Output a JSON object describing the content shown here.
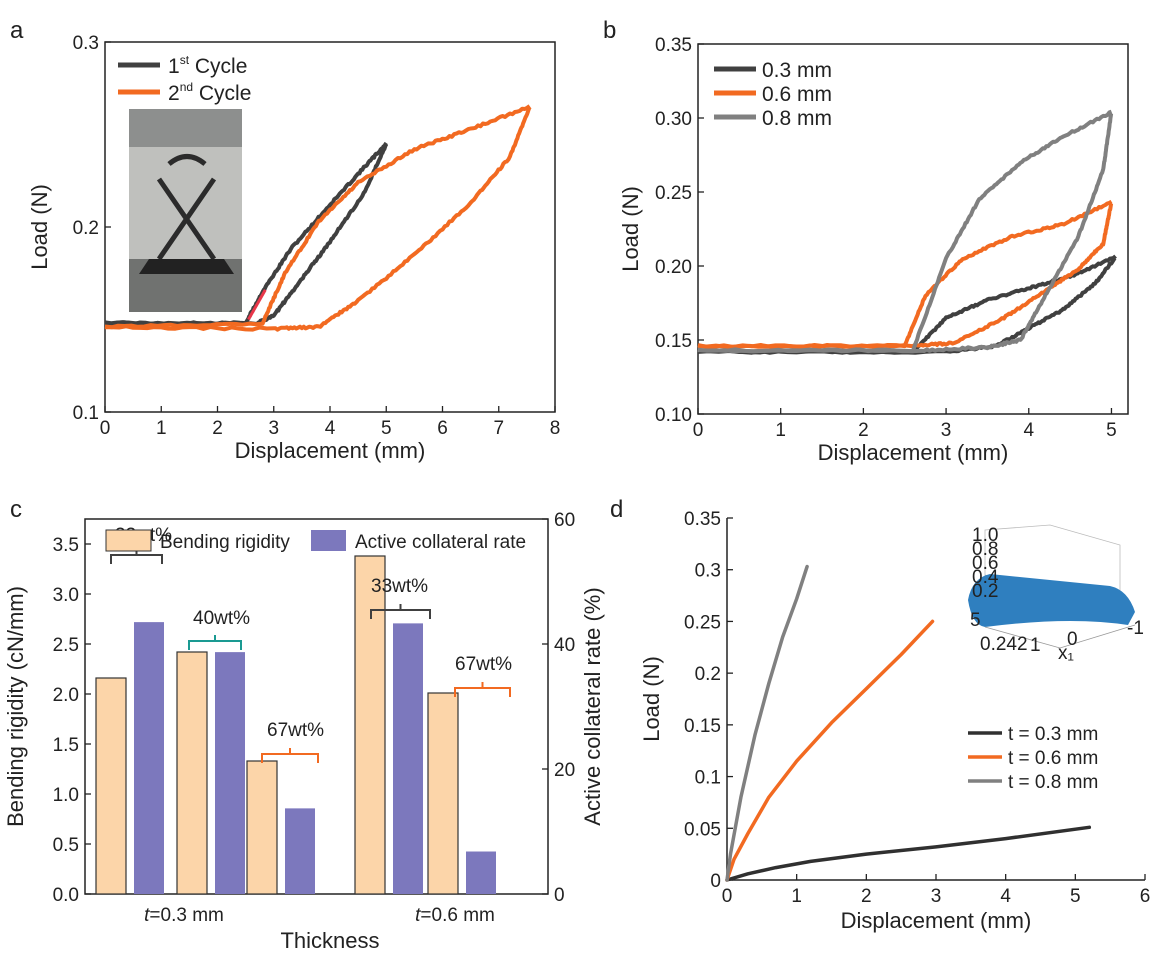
{
  "colors": {
    "dark": "#404040",
    "orange": "#f26a21",
    "gray": "#808080",
    "teal": "#1a9a92",
    "peach": "#fcd5a9",
    "purple": "#7c78bd",
    "red": "#e8374a"
  },
  "chart_data": [
    {
      "panel": "a",
      "type": "line",
      "xlabel": "Displacement (mm)",
      "ylabel": "Load (N)",
      "xlim": [
        0,
        8
      ],
      "ylim": [
        0.1,
        0.3
      ],
      "xticks": [
        "0",
        "1",
        "2",
        "3",
        "4",
        "5",
        "6",
        "7",
        "8"
      ],
      "yticks": [
        "0.1",
        "0.2",
        "0.3"
      ],
      "legend_position": "top-left",
      "inset": "photo of bent specimen in compression test fixture",
      "series": [
        {
          "name_base": "1",
          "name_sup": "st",
          "name_rest": " Cycle",
          "color": "#404040",
          "loading": [
            [
              0,
              0.148
            ],
            [
              2.5,
              0.148
            ],
            [
              2.8,
              0.165
            ],
            [
              3.3,
              0.188
            ],
            [
              4.0,
              0.212
            ],
            [
              4.6,
              0.232
            ],
            [
              5.0,
              0.245
            ]
          ],
          "unloading": [
            [
              5.0,
              0.245
            ],
            [
              4.6,
              0.218
            ],
            [
              4.0,
              0.192
            ],
            [
              3.5,
              0.172
            ],
            [
              3.0,
              0.152
            ],
            [
              2.7,
              0.148
            ],
            [
              0,
              0.148
            ]
          ]
        },
        {
          "name_base": "2",
          "name_sup": "nd",
          "name_rest": " Cycle",
          "color": "#f26a21",
          "loading": [
            [
              0,
              0.146
            ],
            [
              2.8,
              0.148
            ],
            [
              3.2,
              0.175
            ],
            [
              3.8,
              0.203
            ],
            [
              4.5,
              0.224
            ],
            [
              5.5,
              0.242
            ],
            [
              6.5,
              0.253
            ],
            [
              7.55,
              0.265
            ]
          ],
          "unloading": [
            [
              7.55,
              0.265
            ],
            [
              7.2,
              0.238
            ],
            [
              6.5,
              0.213
            ],
            [
              5.5,
              0.185
            ],
            [
              4.5,
              0.16
            ],
            [
              3.8,
              0.146
            ],
            [
              3.0,
              0.145
            ],
            [
              0,
              0.146
            ]
          ]
        }
      ]
    },
    {
      "panel": "b",
      "type": "line",
      "xlabel": "Displacement (mm)",
      "ylabel": "Load (N)",
      "xlim": [
        0,
        5.2
      ],
      "ylim": [
        0.1,
        0.35
      ],
      "xticks": [
        "0",
        "1",
        "2",
        "3",
        "4",
        "5"
      ],
      "yticks": [
        "0.10",
        "0.15",
        "0.20",
        "0.25",
        "0.30",
        "0.35"
      ],
      "legend_position": "top-left",
      "series": [
        {
          "name": "0.3 mm",
          "color": "#404040",
          "loading": [
            [
              0,
              0.142
            ],
            [
              2.6,
              0.142
            ],
            [
              3.0,
              0.165
            ],
            [
              3.5,
              0.177
            ],
            [
              4.0,
              0.185
            ],
            [
              4.5,
              0.193
            ],
            [
              5.05,
              0.206
            ]
          ],
          "unloading": [
            [
              5.05,
              0.206
            ],
            [
              4.8,
              0.188
            ],
            [
              4.4,
              0.17
            ],
            [
              4.0,
              0.158
            ],
            [
              3.6,
              0.146
            ],
            [
              3.0,
              0.142
            ],
            [
              0,
              0.142
            ]
          ]
        },
        {
          "name": "0.6 mm",
          "color": "#f26a21",
          "loading": [
            [
              0,
              0.146
            ],
            [
              2.5,
              0.146
            ],
            [
              2.75,
              0.18
            ],
            [
              3.2,
              0.205
            ],
            [
              3.8,
              0.22
            ],
            [
              4.4,
              0.228
            ],
            [
              5.0,
              0.243
            ]
          ],
          "unloading": [
            [
              5.0,
              0.243
            ],
            [
              4.9,
              0.215
            ],
            [
              4.6,
              0.198
            ],
            [
              4.2,
              0.183
            ],
            [
              3.7,
              0.165
            ],
            [
              3.1,
              0.148
            ],
            [
              2.6,
              0.146
            ],
            [
              0,
              0.146
            ]
          ]
        },
        {
          "name": "0.8 mm",
          "color": "#808080",
          "loading": [
            [
              0,
              0.143
            ],
            [
              2.6,
              0.143
            ],
            [
              3.0,
              0.205
            ],
            [
              3.4,
              0.245
            ],
            [
              3.9,
              0.27
            ],
            [
              4.4,
              0.287
            ],
            [
              5.0,
              0.304
            ]
          ],
          "unloading": [
            [
              5.0,
              0.304
            ],
            [
              4.9,
              0.265
            ],
            [
              4.6,
              0.22
            ],
            [
              4.2,
              0.18
            ],
            [
              3.9,
              0.15
            ],
            [
              3.5,
              0.145
            ],
            [
              2.7,
              0.143
            ],
            [
              0,
              0.143
            ]
          ]
        }
      ]
    },
    {
      "panel": "c",
      "type": "bar",
      "xlabel": "Thickness",
      "ylabel": "Bending rigidity (cN/mm)",
      "ylabel_right": "Active collateral rate (%)",
      "ylim": [
        0,
        3.75
      ],
      "ylim_right": [
        0,
        60
      ],
      "yticks": [
        "0.0",
        "0.5",
        "1.0",
        "1.5",
        "2.0",
        "2.5",
        "3.0",
        "3.5"
      ],
      "yticks_right": [
        "0",
        "20",
        "40",
        "60"
      ],
      "category_labels": [
        {
          "italic": "t",
          "rest": "=0.3 mm"
        },
        {
          "italic": "t",
          "rest": "=0.6 mm"
        }
      ],
      "legend": [
        "Bending rigidity",
        "Active collateral rate"
      ],
      "legend_position": "top",
      "groups": [
        {
          "category": 0,
          "bending_rigidity": 2.16,
          "active_collateral_rate": 43.5,
          "annotation": "33wt%",
          "annotation_color": "#404040"
        },
        {
          "category": 0,
          "bending_rigidity": 2.42,
          "active_collateral_rate": 38.7,
          "annotation": "40wt%",
          "annotation_color": "#1a9a92"
        },
        {
          "category": 0,
          "bending_rigidity": 1.33,
          "active_collateral_rate": 13.7,
          "annotation": "67wt%",
          "annotation_color": "#f26a21"
        },
        {
          "category": 1,
          "bending_rigidity": 3.38,
          "active_collateral_rate": 43.3,
          "annotation": "33wt%",
          "annotation_color": "#404040"
        },
        {
          "category": 1,
          "bending_rigidity": 2.01,
          "active_collateral_rate": 6.8,
          "annotation": "67wt%",
          "annotation_color": "#f26a21"
        }
      ]
    },
    {
      "panel": "d",
      "type": "line",
      "xlabel": "Displacement (mm)",
      "ylabel": "Load (N)",
      "xlim": [
        0,
        6
      ],
      "ylim": [
        0,
        0.35
      ],
      "xticks": [
        "0",
        "1",
        "2",
        "3",
        "4",
        "5",
        "6"
      ],
      "yticks": [
        "0",
        "0.05",
        "0.1",
        "0.15",
        "0.2",
        "0.25",
        "0.3",
        "0.35"
      ],
      "legend_position": "bottom-right",
      "inset": "3D surface plot",
      "inset_ticks": [
        "1.0",
        "0.8",
        "0.6",
        "0.4",
        "0.2",
        "5",
        "0.242",
        "0",
        "1",
        "-1",
        "x₁"
      ],
      "series": [
        {
          "name": "t = 0.3 mm",
          "color": "#303030",
          "points": [
            [
              0,
              0
            ],
            [
              0.3,
              0.006
            ],
            [
              0.7,
              0.012
            ],
            [
              1.2,
              0.018
            ],
            [
              2,
              0.025
            ],
            [
              3,
              0.032
            ],
            [
              4,
              0.04
            ],
            [
              5.2,
              0.051
            ]
          ]
        },
        {
          "name": "t = 0.6 mm",
          "color": "#f26a21",
          "points": [
            [
              0,
              0
            ],
            [
              0.1,
              0.02
            ],
            [
              0.3,
              0.045
            ],
            [
              0.6,
              0.08
            ],
            [
              1.0,
              0.115
            ],
            [
              1.5,
              0.152
            ],
            [
              2.0,
              0.185
            ],
            [
              2.5,
              0.218
            ],
            [
              2.95,
              0.25
            ]
          ]
        },
        {
          "name": "t = 0.8 mm",
          "color": "#808080",
          "points": [
            [
              0,
              0
            ],
            [
              0.05,
              0.025
            ],
            [
              0.2,
              0.08
            ],
            [
              0.4,
              0.14
            ],
            [
              0.6,
              0.19
            ],
            [
              0.8,
              0.235
            ],
            [
              1.0,
              0.272
            ],
            [
              1.15,
              0.303
            ]
          ]
        }
      ]
    }
  ],
  "panels": {
    "a": "a",
    "b": "b",
    "c": "c",
    "d": "d"
  }
}
